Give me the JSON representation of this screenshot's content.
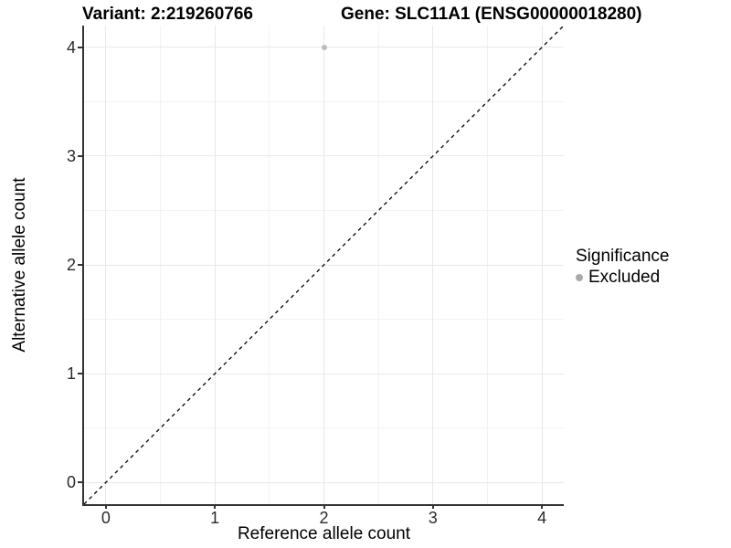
{
  "titles": {
    "variant": "Variant: 2:219260766",
    "gene": "Gene: SLC11A1 (ENSG00000018280)"
  },
  "chart_data": {
    "type": "scatter",
    "xlabel": "Reference allele count",
    "ylabel": "Alternative allele count",
    "xlim": [
      -0.2,
      4.2
    ],
    "ylim": [
      -0.2,
      4.2
    ],
    "xticks": [
      0,
      1,
      2,
      3,
      4
    ],
    "yticks": [
      0,
      1,
      2,
      3,
      4
    ],
    "minor_step": 0.5,
    "grid": true,
    "series": [
      {
        "name": "Excluded",
        "color": "#bdbdbd",
        "points": [
          {
            "x": 2,
            "y": 4
          }
        ]
      }
    ],
    "reference_line": {
      "type": "identity-diagonal",
      "style": "dashed",
      "color": "#000000"
    },
    "legend": {
      "position": "right",
      "title": "Significance",
      "entries": [
        {
          "label": "Excluded",
          "color": "#a9a9a9"
        }
      ]
    }
  },
  "colors": {
    "axis_line": "#333333",
    "grid_major": "#e8e8e8",
    "grid_minor": "#f2f2f2",
    "background": "#ffffff"
  }
}
